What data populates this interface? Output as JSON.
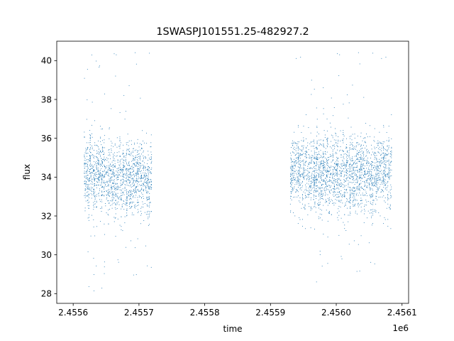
{
  "chart_data": {
    "type": "scatter",
    "title": "1SWASPJ101551.25-482927.2",
    "xlabel": "time",
    "ylabel": "flux",
    "x_offset_label": "1e6",
    "xlim": [
      2455575,
      2456110
    ],
    "ylim": [
      27.5,
      41.0
    ],
    "x_ticks": [
      2455600,
      2455700,
      2455800,
      2455900,
      2456000,
      2456100
    ],
    "x_tick_labels": [
      "2.4556",
      "2.4557",
      "2.4558",
      "2.4559",
      "2.4560",
      "2.4561"
    ],
    "y_ticks": [
      28,
      30,
      32,
      34,
      36,
      38,
      40
    ],
    "y_tick_labels": [
      "28",
      "30",
      "32",
      "34",
      "36",
      "38",
      "40"
    ],
    "grid": false,
    "legend": "none",
    "marker_color": "#1f77b4",
    "series": [
      {
        "x_range": [
          2455617,
          2455720
        ],
        "y_center": 34.0,
        "y_core_spread": 1.3,
        "y_outlier_range": [
          28.1,
          40.5
        ]
      },
      {
        "x_range": [
          2455930,
          2456085
        ],
        "y_center": 34.2,
        "y_core_spread": 1.4,
        "y_outlier_range": [
          28.3,
          40.5
        ]
      }
    ]
  }
}
